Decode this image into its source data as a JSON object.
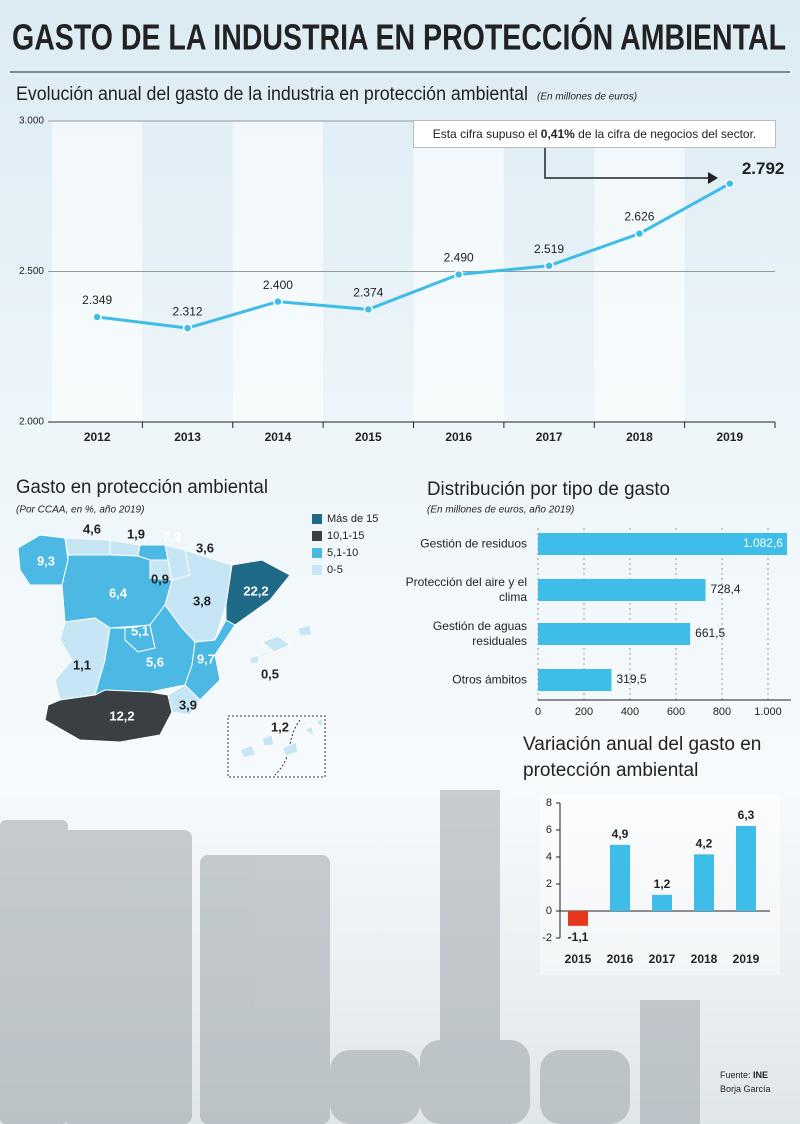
{
  "title": "GASTO DE LA INDUSTRIA EN PROTECCIÓN AMBIENTAL",
  "chart_data": [
    {
      "type": "line",
      "title": "Evolución anual del gasto de la industria en protección ambiental",
      "subtitle": "(En millones de euros)",
      "categories": [
        "2012",
        "2013",
        "2014",
        "2015",
        "2016",
        "2017",
        "2018",
        "2019"
      ],
      "values": [
        2349,
        2312,
        2400,
        2374,
        2490,
        2519,
        2626,
        2792
      ],
      "value_labels": [
        "2.349",
        "2.312",
        "2.400",
        "2.374",
        "2.490",
        "2.519",
        "2.626",
        "2.792"
      ],
      "color": "#3dbde8",
      "ylim": [
        2000,
        3000
      ],
      "yticks": [
        {
          "value": 2000,
          "label": "2.000"
        },
        {
          "value": 2500,
          "label": "2.500"
        },
        {
          "value": 3000,
          "label": "3.000"
        }
      ],
      "grid": true,
      "annotation": [
        "Esta cifra supuso el",
        "0,41%",
        "de la cifra de negocios del sector."
      ]
    },
    {
      "type": "map",
      "title": "Gasto en protección ambiental",
      "subtitle": "(Por CCAA, en %, año 2019)",
      "values": [
        9.3,
        4.6,
        1.9,
        7.9,
        3.6,
        0.9,
        6.4,
        3.8,
        22.2,
        5.1,
        1.1,
        5.6,
        9.7,
        0.5,
        12.2,
        3.9,
        1.2
      ],
      "value_labels": [
        "9,3",
        "4,6",
        "1,9",
        "7,9",
        "3,6",
        "0,9",
        "6,4",
        "3,8",
        "22,2",
        "5,1",
        "1,1",
        "5,6",
        "9,7",
        "0,5",
        "12,2",
        "3,9",
        "1,2"
      ],
      "colors": [
        "#4cb8e4",
        "#c6e6f5",
        "#c6e6f5",
        "#4cb8e4",
        "#c6e6f5",
        "#c6e6f5",
        "#4cb8e4",
        "#c6e6f5",
        "#1f6a86",
        "#4cb8e4",
        "#c6e6f5",
        "#4cb8e4",
        "#4cb8e4",
        "#c6e6f5",
        "#3a3f44",
        "#c6e6f5",
        "#c6e6f5"
      ],
      "legend": [
        {
          "label": "Más de 15",
          "color": "#1f6a86"
        },
        {
          "label": "10,1-15",
          "color": "#3a3f44"
        },
        {
          "label": "5,1-10",
          "color": "#4cb8e4"
        },
        {
          "label": "0-5",
          "color": "#c6e6f5"
        }
      ]
    },
    {
      "type": "hbar",
      "title": "Distribución por tipo de gasto",
      "subtitle": "(En millones de euros, año 2019)",
      "categories": [
        "Gestión de residuos",
        "Protección del aire y el clima",
        "Gestión de aguas residuales",
        "Otros ámbitos"
      ],
      "values": [
        1082.6,
        728.4,
        661.5,
        319.5
      ],
      "value_labels": [
        "1.082,6",
        "728,4",
        "661,5",
        "319,5"
      ],
      "color": "#3dbde8",
      "xlim": [
        0,
        1100
      ],
      "xticks": [
        0,
        200,
        400,
        600,
        800,
        {
          "value": 1000,
          "label": "1.000"
        }
      ],
      "grid": true
    },
    {
      "type": "bar",
      "title": "Variación anual del gasto en protección ambiental",
      "categories": [
        "2015",
        "2016",
        "2017",
        "2018",
        "2019"
      ],
      "values": [
        -1.1,
        4.9,
        1.2,
        4.2,
        6.3
      ],
      "value_labels": [
        "-1,1",
        "4,9",
        "1,2",
        "4,2",
        "6,3"
      ],
      "colors": [
        "#e8361c",
        "#3dbde8",
        "#3dbde8",
        "#3dbde8",
        "#3dbde8"
      ],
      "ylim": [
        -2,
        8
      ],
      "yticks": [
        -2,
        0,
        2,
        4,
        6,
        8
      ]
    }
  ],
  "source": {
    "label": "Fuente:",
    "name": "INE",
    "author": "Borja García"
  }
}
